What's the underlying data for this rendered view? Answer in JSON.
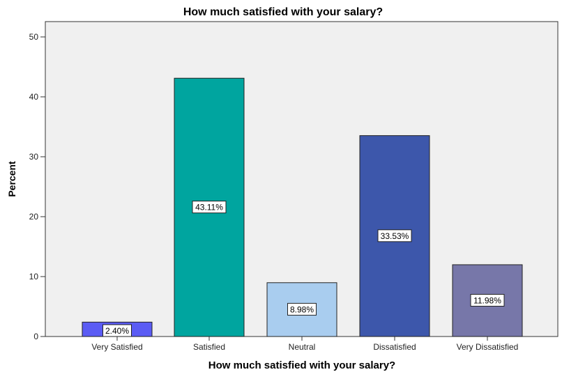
{
  "chart_data": {
    "type": "bar",
    "title": "How much satisfied with your salary?",
    "xlabel": "How much satisfied with your salary?",
    "ylabel": "Percent",
    "ylim": [
      0,
      50
    ],
    "yticks": [
      0,
      10,
      20,
      30,
      40,
      50
    ],
    "grid": false,
    "categories": [
      "Very Satisfied",
      "Satisfied",
      "Neutral",
      "Dissatisfied",
      "Very Dissatisfied"
    ],
    "values": [
      2.4,
      43.11,
      8.98,
      33.53,
      11.98
    ],
    "data_labels": [
      "2.40%",
      "43.11%",
      "8.98%",
      "33.53%",
      "11.98%"
    ],
    "colors": [
      "#5b5cf4",
      "#00a59f",
      "#a9cdef",
      "#3d57ab",
      "#7777a9"
    ],
    "background": "#f0f0f0"
  }
}
